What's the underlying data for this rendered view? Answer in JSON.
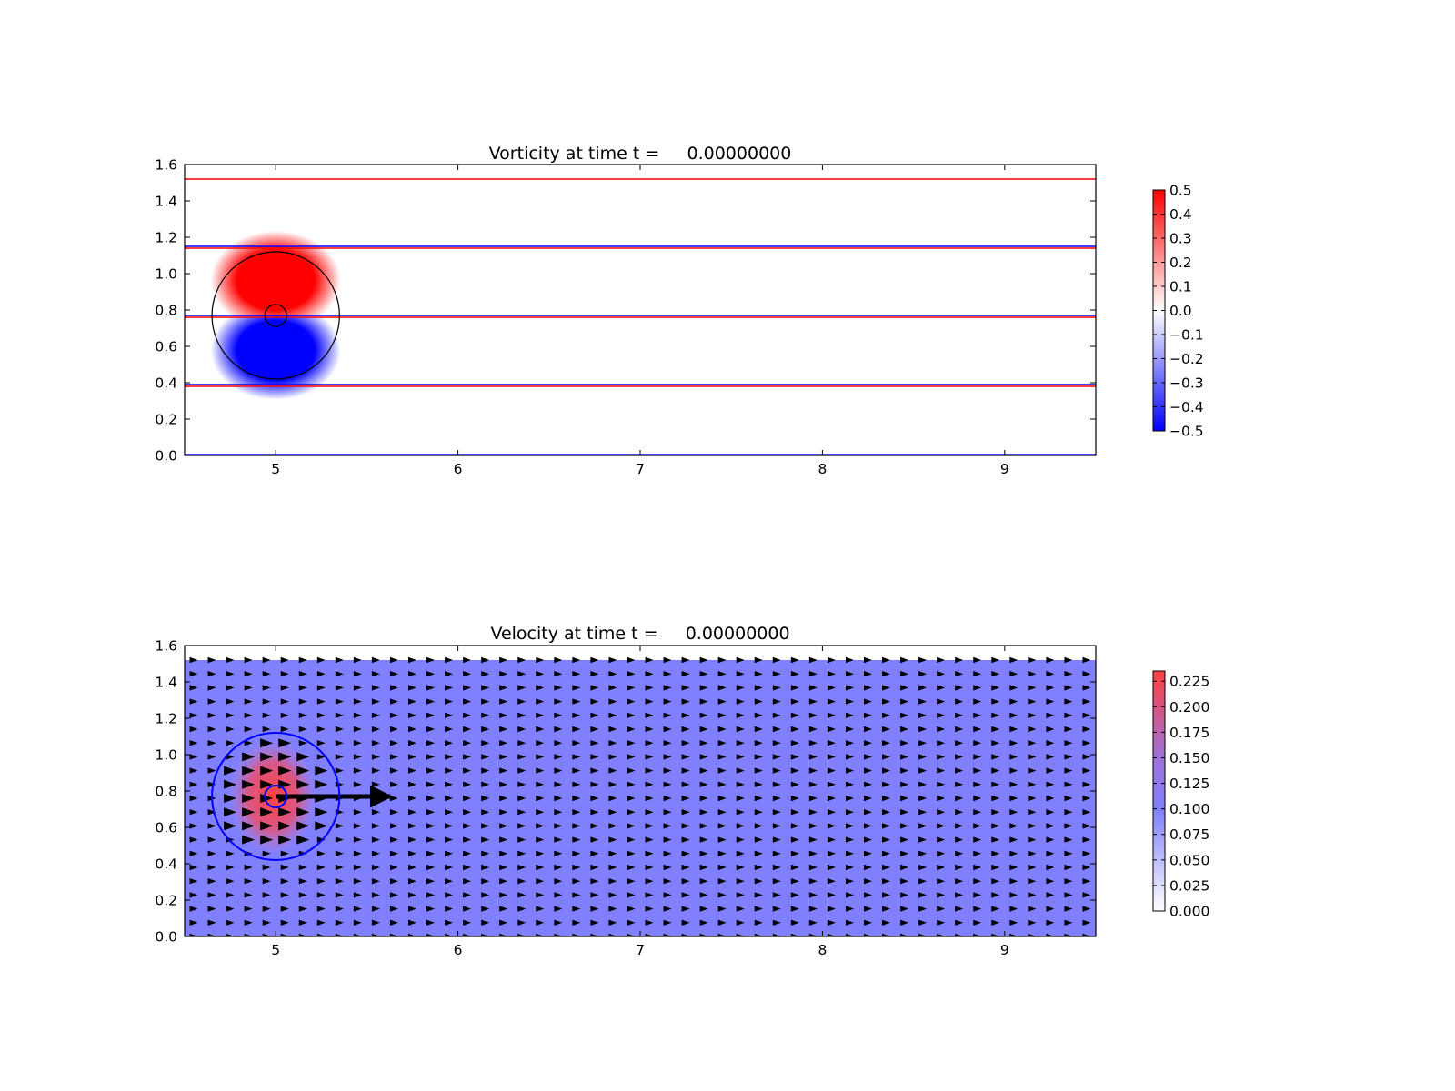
{
  "chart_data": [
    {
      "type": "heatmap",
      "title": "Vorticity at time t =     0.00000000",
      "xlabel": "",
      "ylabel": "",
      "xlim": [
        4.5,
        9.5
      ],
      "ylim": [
        0.0,
        1.6
      ],
      "x_ticks": [
        "5",
        "6",
        "7",
        "8",
        "9"
      ],
      "y_ticks": [
        "0.0",
        "0.2",
        "0.4",
        "0.6",
        "0.8",
        "1.0",
        "1.2",
        "1.4",
        "1.6"
      ],
      "colormap": [
        "#0000ff",
        "#ffffff",
        "#ff0000"
      ],
      "colorbar": {
        "range": [
          -0.5,
          0.5
        ],
        "ticks": [
          "−0.5",
          "−0.4",
          "−0.3",
          "−0.2",
          "−0.1",
          "0.0",
          "0.1",
          "0.2",
          "0.3",
          "0.4",
          "0.5"
        ]
      },
      "vortex": {
        "center": [
          5.0,
          0.77
        ],
        "radius": 0.35,
        "core_radius": 0.06,
        "positive_lobe": "upper",
        "peak": 0.5
      },
      "horizontal_lines": [
        {
          "y": 1.52,
          "color": "#ff0000"
        },
        {
          "y": 1.15,
          "color": "#0000ff"
        },
        {
          "y": 1.14,
          "color": "#ff0000"
        },
        {
          "y": 0.77,
          "color": "#0000ff"
        },
        {
          "y": 0.76,
          "color": "#ff0000"
        },
        {
          "y": 0.39,
          "color": "#0000ff"
        },
        {
          "y": 0.38,
          "color": "#ff0000"
        },
        {
          "y": 0.005,
          "color": "#0000ff"
        }
      ],
      "circle_color": "#000000"
    },
    {
      "type": "heatmap",
      "title": "Velocity at time t =     0.00000000",
      "xlabel": "",
      "ylabel": "",
      "xlim": [
        4.5,
        9.5
      ],
      "ylim": [
        0.0,
        1.6
      ],
      "x_ticks": [
        "5",
        "6",
        "7",
        "8",
        "9"
      ],
      "y_ticks": [
        "0.0",
        "0.2",
        "0.4",
        "0.6",
        "0.8",
        "1.0",
        "1.2",
        "1.4",
        "1.6"
      ],
      "colormap": [
        "#ffffff",
        "#8080ff",
        "#ff4040"
      ],
      "colorbar": {
        "range": [
          0.0,
          0.235
        ],
        "ticks": [
          "0.000",
          "0.025",
          "0.050",
          "0.075",
          "0.100",
          "0.125",
          "0.150",
          "0.175",
          "0.200",
          "0.225"
        ]
      },
      "background_speed": 0.1,
      "field_top": 1.52,
      "vortex": {
        "center": [
          5.0,
          0.77
        ],
        "radius": 0.35,
        "core_radius": 0.06,
        "peak_speed": 0.235
      },
      "quiver": {
        "direction": "positive-x",
        "x_spacing": 0.1,
        "y_spacing": 0.076,
        "vortex_arrow": {
          "from": [
            5.0,
            0.77
          ],
          "to": [
            5.63,
            0.77
          ]
        }
      },
      "circle_color": "#0000ff"
    }
  ]
}
